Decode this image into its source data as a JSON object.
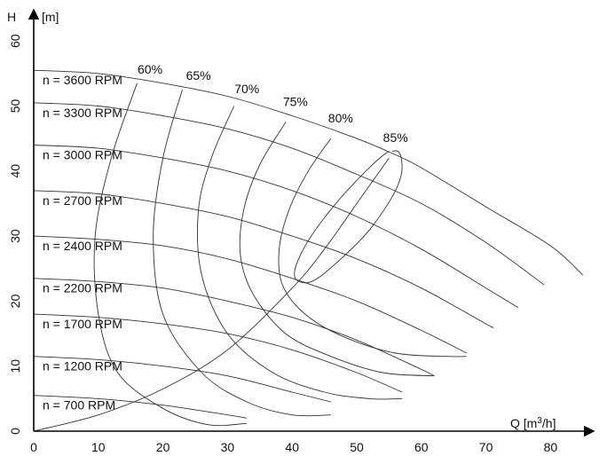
{
  "chart_data": {
    "type": "line",
    "title": "",
    "xlabel": "Q [m³/h]",
    "ylabel": "[m]",
    "yaxis_letter": "H",
    "xlim": [
      0,
      85
    ],
    "ylim": [
      0,
      60
    ],
    "xticks": [
      0,
      10,
      20,
      30,
      40,
      50,
      60,
      70,
      80
    ],
    "yticks": [
      0,
      10,
      20,
      30,
      40,
      50,
      60
    ],
    "grid": false,
    "legend": "none",
    "speed_curves": [
      {
        "name": "n = 3600 RPM",
        "points": [
          [
            0,
            55.5
          ],
          [
            10,
            55
          ],
          [
            20,
            53.5
          ],
          [
            30,
            51.5
          ],
          [
            40,
            48.5
          ],
          [
            50,
            45
          ],
          [
            56,
            42.5
          ],
          [
            60,
            40.5
          ],
          [
            70,
            34.5
          ],
          [
            80,
            28.5
          ],
          [
            85,
            24
          ]
        ]
      },
      {
        "name": "n = 3300 RPM",
        "points": [
          [
            0,
            50.5
          ],
          [
            10,
            50
          ],
          [
            20,
            48.5
          ],
          [
            30,
            46.5
          ],
          [
            40,
            43.5
          ],
          [
            50,
            39.5
          ],
          [
            60,
            35
          ],
          [
            70,
            29
          ],
          [
            79,
            22.5
          ]
        ]
      },
      {
        "name": "n = 3000 RPM",
        "points": [
          [
            0,
            44
          ],
          [
            10,
            43.5
          ],
          [
            20,
            42
          ],
          [
            30,
            40
          ],
          [
            40,
            37
          ],
          [
            50,
            33
          ],
          [
            60,
            28
          ],
          [
            70,
            22
          ],
          [
            75,
            19
          ]
        ]
      },
      {
        "name": "n = 2700 RPM",
        "points": [
          [
            0,
            37
          ],
          [
            10,
            36.5
          ],
          [
            20,
            35
          ],
          [
            30,
            33
          ],
          [
            40,
            30
          ],
          [
            50,
            26.5
          ],
          [
            60,
            22
          ],
          [
            70,
            16.5
          ],
          [
            71,
            16
          ]
        ]
      },
      {
        "name": "n = 2400 RPM",
        "points": [
          [
            0,
            30
          ],
          [
            10,
            29.5
          ],
          [
            20,
            28.5
          ],
          [
            30,
            26.5
          ],
          [
            40,
            23.5
          ],
          [
            50,
            20
          ],
          [
            60,
            15.5
          ],
          [
            67,
            12
          ]
        ]
      },
      {
        "name": "n = 2200 RPM",
        "points": [
          [
            0,
            23.5
          ],
          [
            10,
            23
          ],
          [
            20,
            22
          ],
          [
            30,
            20
          ],
          [
            40,
            17.5
          ],
          [
            50,
            14
          ],
          [
            60,
            9.5
          ],
          [
            62,
            8.5
          ]
        ]
      },
      {
        "name": "n = 1700 RPM",
        "points": [
          [
            0,
            18
          ],
          [
            10,
            17.5
          ],
          [
            20,
            16.5
          ],
          [
            30,
            15
          ],
          [
            40,
            12.5
          ],
          [
            50,
            9
          ],
          [
            57,
            6
          ]
        ]
      },
      {
        "name": "n = 1200 RPM",
        "points": [
          [
            0,
            11.5
          ],
          [
            10,
            11
          ],
          [
            20,
            10
          ],
          [
            30,
            8.5
          ],
          [
            40,
            6
          ],
          [
            46,
            4.5
          ]
        ]
      },
      {
        "name": "n = 700 RPM",
        "points": [
          [
            0,
            5.5
          ],
          [
            10,
            5
          ],
          [
            20,
            4
          ],
          [
            30,
            2.5
          ],
          [
            33,
            2
          ]
        ]
      }
    ],
    "efficiency_curves": [
      {
        "name": "60%",
        "points": [
          [
            16,
            53.5
          ],
          [
            12,
            42
          ],
          [
            9.5,
            30
          ],
          [
            10,
            18
          ],
          [
            13,
            9
          ],
          [
            20,
            3.5
          ],
          [
            27,
            1
          ],
          [
            33,
            1.2
          ]
        ]
      },
      {
        "name": "65%",
        "points": [
          [
            23,
            52.5
          ],
          [
            20,
            42
          ],
          [
            18.5,
            30
          ],
          [
            20,
            18
          ],
          [
            26,
            9
          ],
          [
            33,
            4.5
          ],
          [
            40,
            2.5
          ],
          [
            46,
            2.5
          ]
        ]
      },
      {
        "name": "70%",
        "points": [
          [
            31,
            50
          ],
          [
            27.5,
            42
          ],
          [
            25.5,
            34
          ],
          [
            26,
            24
          ],
          [
            30,
            15
          ],
          [
            37,
            9
          ],
          [
            45,
            6
          ],
          [
            52,
            5
          ],
          [
            57,
            5
          ]
        ]
      },
      {
        "name": "75%",
        "points": [
          [
            39,
            47.5
          ],
          [
            35,
            41
          ],
          [
            32.5,
            34
          ],
          [
            32,
            27
          ],
          [
            34,
            21
          ],
          [
            39,
            15
          ],
          [
            46,
            11.5
          ],
          [
            54,
            9
          ],
          [
            62,
            8.5
          ]
        ]
      },
      {
        "name": "80%",
        "points": [
          [
            46,
            45
          ],
          [
            42.5,
            40
          ],
          [
            39.5,
            34
          ],
          [
            38,
            28
          ],
          [
            38.5,
            22.5
          ],
          [
            42,
            18
          ],
          [
            48,
            14.5
          ],
          [
            56,
            12
          ],
          [
            64,
            11.5
          ],
          [
            67,
            11.5
          ]
        ]
      },
      {
        "name": "85%",
        "points": [
          [
            55,
            43
          ],
          [
            49,
            37.5
          ],
          [
            44,
            31.5
          ],
          [
            41,
            26.5
          ],
          [
            40.5,
            23.5
          ],
          [
            43,
            23
          ],
          [
            47,
            26
          ],
          [
            52,
            31
          ],
          [
            56,
            37
          ],
          [
            57,
            41
          ],
          [
            55.5,
            43
          ]
        ]
      }
    ],
    "operating_line": [
      [
        0,
        0
      ],
      [
        10,
        2.5
      ],
      [
        20,
        6.5
      ],
      [
        30,
        12.5
      ],
      [
        40,
        22
      ],
      [
        45,
        28
      ],
      [
        50,
        35
      ],
      [
        55,
        42
      ]
    ],
    "label_positions": [
      {
        "name": "60%",
        "x": 18,
        "y": 55
      },
      {
        "name": "65%",
        "x": 25.5,
        "y": 54
      },
      {
        "name": "70%",
        "x": 33,
        "y": 52
      },
      {
        "name": "75%",
        "x": 40.5,
        "y": 50
      },
      {
        "name": "80%",
        "x": 47.5,
        "y": 47.5
      },
      {
        "name": "85%",
        "x": 56,
        "y": 44.5
      }
    ]
  }
}
